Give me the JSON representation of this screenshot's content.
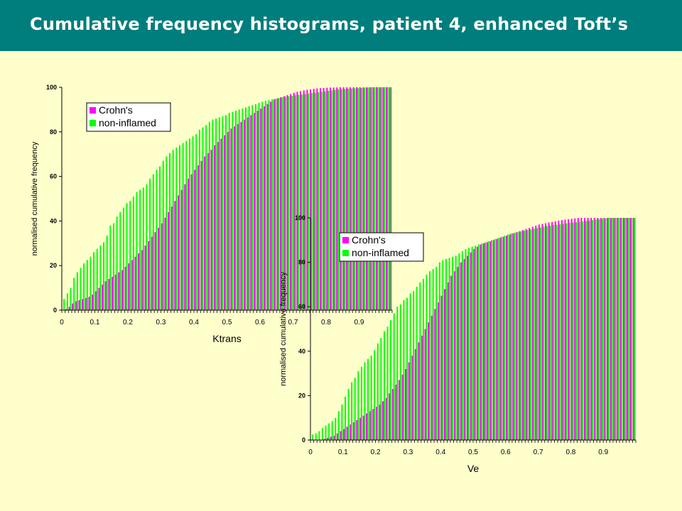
{
  "header": {
    "title": "Cumulative frequency histograms, patient 4, enhanced Toft’s",
    "background": "#007D7D",
    "text_color": "#FFFFFF"
  },
  "page_background": "#FFFFCC",
  "chart_data": [
    {
      "type": "bar",
      "xlabel": "Ktrans",
      "ylabel": "normalised cumulative frequency",
      "xlim": [
        0,
        1
      ],
      "ylim": [
        0,
        100
      ],
      "x_ticks": [
        "0",
        "0.1",
        "0.2",
        "0.3",
        "0.4",
        "0.5",
        "0.6",
        "0.7",
        "0.8",
        "0.9"
      ],
      "y_ticks": [
        "0",
        "20",
        "40",
        "60",
        "80",
        "100"
      ],
      "bin_width": 0.01,
      "legend": {
        "position": "top-left"
      },
      "series": [
        {
          "name": "Crohn's",
          "color": "#FF00FF",
          "values": [
            0,
            0.5,
            1.5,
            3,
            4,
            4.5,
            5,
            5.5,
            6,
            7,
            8.5,
            10,
            11.5,
            13,
            14,
            15,
            16,
            17,
            18,
            19.5,
            21,
            22.5,
            24,
            25.5,
            27,
            29,
            31,
            33,
            35,
            37,
            39,
            41.5,
            44,
            46.5,
            49,
            51.5,
            54,
            56.5,
            59,
            61,
            63,
            65,
            67,
            69,
            70.5,
            72,
            74,
            75.5,
            77,
            78.5,
            80,
            81.5,
            82.5,
            83.5,
            84.5,
            85.5,
            86.5,
            87.5,
            88.5,
            89.5,
            90.5,
            91.5,
            92.5,
            93.5,
            94.5,
            95,
            95.5,
            96,
            96.5,
            97,
            97.5,
            98,
            98.3,
            98.6,
            98.9,
            99.1,
            99.3,
            99.5,
            99.6,
            99.7,
            99.8,
            99.85,
            99.9,
            99.95,
            100,
            100,
            100,
            100,
            100,
            100,
            100,
            100,
            100,
            100,
            100,
            100,
            100,
            100,
            100,
            100
          ]
        },
        {
          "name": "non-inflamed",
          "color": "#00FF00",
          "values": [
            5,
            7.5,
            10,
            14.5,
            17,
            19,
            21,
            22.5,
            24,
            26,
            27.5,
            29,
            30.5,
            33.5,
            38,
            39,
            42,
            44,
            46,
            48,
            49,
            51,
            53,
            54,
            55,
            56.5,
            59,
            61,
            63,
            64.5,
            67,
            69,
            70.5,
            72,
            73,
            74,
            75,
            76,
            77,
            78,
            79,
            81,
            82,
            83,
            84.5,
            85.5,
            86,
            86.5,
            87,
            87.5,
            88.5,
            89,
            89.5,
            90,
            90.5,
            91,
            91.5,
            92,
            92.5,
            93,
            93.5,
            94,
            94.3,
            94.6,
            94.9,
            95.2,
            95.5,
            95.8,
            96,
            96.2,
            96.4,
            96.6,
            96.8,
            97,
            97.2,
            97.4,
            97.6,
            97.8,
            98,
            98.2,
            98.4,
            98.6,
            98.8,
            99,
            99.1,
            99.2,
            99.3,
            99.4,
            99.5,
            99.6,
            99.7,
            99.8,
            99.9,
            100,
            100,
            100,
            100,
            100,
            100,
            100
          ]
        }
      ]
    },
    {
      "type": "bar",
      "xlabel": "Ve",
      "ylabel": "normalised cumulative frequency",
      "xlim": [
        0,
        1
      ],
      "ylim": [
        0,
        100
      ],
      "x_ticks": [
        "0",
        "0.1",
        "0.2",
        "0.3",
        "0.4",
        "0.5",
        "0.6",
        "0.7",
        "0.8",
        "0.9"
      ],
      "y_ticks": [
        "0",
        "20",
        "40",
        "60",
        "80",
        "100"
      ],
      "bin_width": 0.01,
      "legend": {
        "position": "top-left"
      },
      "series": [
        {
          "name": "Crohn's",
          "color": "#FF00FF",
          "values": [
            0,
            0,
            0,
            0,
            0.5,
            1,
            1.5,
            2,
            3,
            4,
            5,
            6,
            7,
            8,
            9,
            10,
            11,
            12,
            13,
            14,
            15,
            16,
            17.5,
            19,
            21,
            23,
            25,
            27,
            29.5,
            32,
            35,
            38,
            41,
            44,
            47,
            50,
            53,
            56,
            59,
            62,
            65,
            68,
            71,
            74,
            76,
            78,
            80,
            81.5,
            83,
            84.5,
            86,
            87,
            88,
            88.5,
            89,
            89.5,
            90,
            90.5,
            91,
            91.5,
            92,
            92.5,
            93,
            93.5,
            94,
            94.5,
            95,
            95.5,
            96,
            96.5,
            97,
            97.3,
            97.6,
            97.9,
            98.2,
            98.5,
            98.8,
            99,
            99.2,
            99.4,
            99.6,
            99.8,
            100,
            100,
            100,
            100,
            100,
            100,
            100,
            100,
            100,
            100,
            100,
            100,
            100,
            100,
            100,
            100,
            100,
            100
          ]
        },
        {
          "name": "non-inflamed",
          "color": "#00FF00",
          "values": [
            2.5,
            3,
            4,
            5.5,
            6.5,
            7.5,
            8.5,
            10,
            13,
            16,
            19.5,
            23,
            26,
            28,
            31,
            33,
            35,
            36.5,
            38,
            40.5,
            43.5,
            46,
            49,
            51,
            54,
            57,
            60,
            61,
            63,
            64,
            66,
            67,
            69,
            71,
            72.5,
            74.5,
            76,
            77,
            78,
            80,
            81,
            81.5,
            82,
            82.5,
            83,
            84,
            85,
            86,
            86.5,
            87,
            87.5,
            88,
            88.5,
            89,
            89.5,
            90,
            90.5,
            91,
            91.5,
            92,
            92.5,
            93,
            93.3,
            93.6,
            93.9,
            94.2,
            94.5,
            94.8,
            95.1,
            95.4,
            95.7,
            96,
            96.3,
            96.5,
            96.7,
            96.9,
            97.1,
            97.3,
            97.5,
            97.7,
            97.9,
            98,
            98.2,
            98.4,
            98.6,
            98.8,
            99,
            99.2,
            99.4,
            99.6,
            99.8,
            100,
            100,
            100,
            100,
            100,
            100,
            100,
            100,
            100
          ]
        }
      ]
    }
  ]
}
